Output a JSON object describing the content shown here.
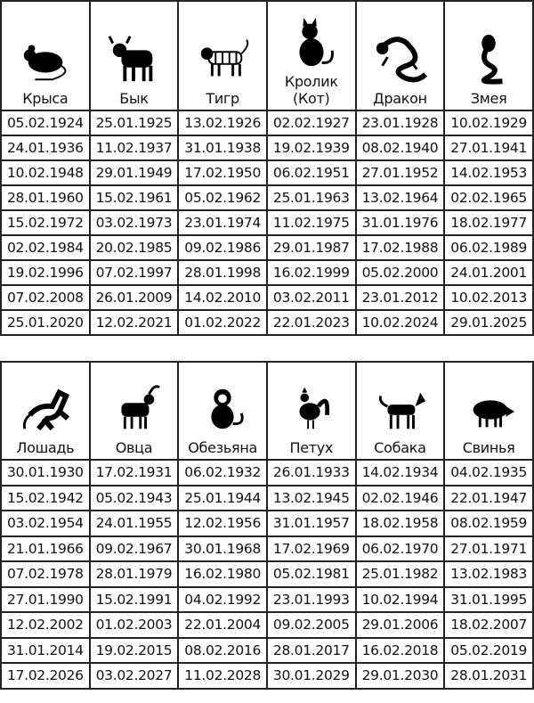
{
  "top": {
    "animals": [
      {
        "name": "Крыса",
        "icon": "rat-icon"
      },
      {
        "name": "Бык",
        "icon": "ox-icon"
      },
      {
        "name": "Тигр",
        "icon": "tiger-icon"
      },
      {
        "name": "Кролик (Кот)",
        "icon": "cat-icon"
      },
      {
        "name": "Дракон",
        "icon": "dragon-icon"
      },
      {
        "name": "Змея",
        "icon": "snake-icon"
      }
    ],
    "rows": [
      [
        "05.02.1924",
        "25.01.1925",
        "13.02.1926",
        "02.02.1927",
        "23.01.1928",
        "10.02.1929"
      ],
      [
        "24.01.1936",
        "11.02.1937",
        "31.01.1938",
        "19.02.1939",
        "08.02.1940",
        "27.01.1941"
      ],
      [
        "10.02.1948",
        "29.01.1949",
        "17.02.1950",
        "06.02.1951",
        "27.01.1952",
        "14.02.1953"
      ],
      [
        "28.01.1960",
        "15.02.1961",
        "05.02.1962",
        "25.01.1963",
        "13.02.1964",
        "02.02.1965"
      ],
      [
        "15.02.1972",
        "03.02.1973",
        "23.01.1974",
        "11.02.1975",
        "31.01.1976",
        "18.02.1977"
      ],
      [
        "02.02.1984",
        "20.02.1985",
        "09.02.1986",
        "29.01.1987",
        "17.02.1988",
        "06.02.1989"
      ],
      [
        "19.02.1996",
        "07.02.1997",
        "28.01.1998",
        "16.02.1999",
        "05.02.2000",
        "24.01.2001"
      ],
      [
        "07.02.2008",
        "26.01.2009",
        "14.02.2010",
        "03.02.2011",
        "23.01.2012",
        "10.02.2013"
      ],
      [
        "25.01.2020",
        "12.02.2021",
        "01.02.2022",
        "22.01.2023",
        "10.02.2024",
        "29.01.2025"
      ]
    ]
  },
  "bottom": {
    "animals": [
      {
        "name": "Лошадь",
        "icon": "horse-icon"
      },
      {
        "name": "Овца",
        "icon": "goat-icon"
      },
      {
        "name": "Обезьяна",
        "icon": "monkey-icon"
      },
      {
        "name": "Петух",
        "icon": "rooster-icon"
      },
      {
        "name": "Собака",
        "icon": "dog-icon"
      },
      {
        "name": "Свинья",
        "icon": "boar-icon"
      }
    ],
    "rows": [
      [
        "30.01.1930",
        "17.02.1931",
        "06.02.1932",
        "26.01.1933",
        "14.02.1934",
        "04.02.1935"
      ],
      [
        "15.02.1942",
        "05.02.1943",
        "25.01.1944",
        "13.02.1945",
        "02.02.1946",
        "22.01.1947"
      ],
      [
        "03.02.1954",
        "24.01.1955",
        "12.02.1956",
        "31.01.1957",
        "18.02.1958",
        "08.02.1959"
      ],
      [
        "21.01.1966",
        "09.02.1967",
        "30.01.1968",
        "17.02.1969",
        "06.02.1970",
        "27.01.1971"
      ],
      [
        "07.02.1978",
        "28.01.1979",
        "16.02.1980",
        "05.02.1981",
        "25.01.1982",
        "13.02.1983"
      ],
      [
        "27.01.1990",
        "15.02.1991",
        "04.02.1992",
        "23.01.1993",
        "10.02.1994",
        "31.01.1995"
      ],
      [
        "12.02.2002",
        "01.02.2003",
        "22.01.2004",
        "09.02.2005",
        "29.01.2006",
        "18.02.2007"
      ],
      [
        "31.01.2014",
        "19.02.2015",
        "08.02.2016",
        "28.01.2017",
        "16.02.2018",
        "05.02.2019"
      ],
      [
        "17.02.2026",
        "03.02.2027",
        "11.02.2028",
        "30.01.2029",
        "29.01.2030",
        "28.01.2031"
      ]
    ]
  }
}
